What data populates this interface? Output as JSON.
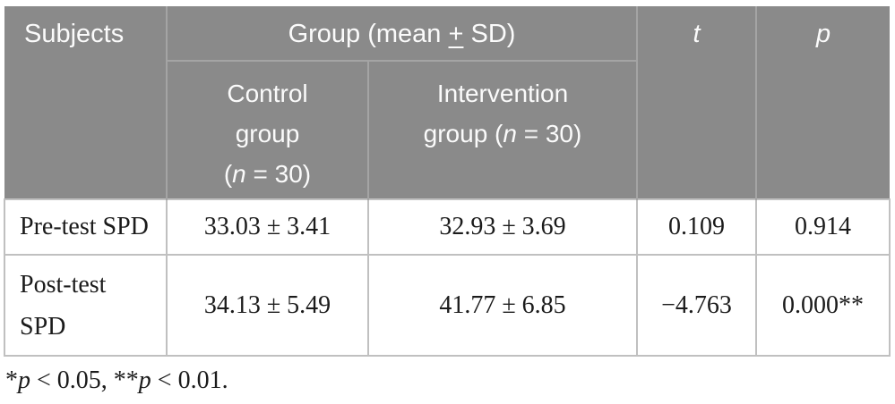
{
  "colors": {
    "header_bg": "#8a8a8a",
    "header_text": "#fbfbfb",
    "header_line": "#a4a4a4",
    "body_border": "#c0c0c0",
    "body_text": "#1b1b1b"
  },
  "table": {
    "header": {
      "subjects": "Subjects",
      "group": "Group (mean [u]+[/u] SD)",
      "t": "[i]t[/i]",
      "p": "[i]p[/i]",
      "control": "Control\ngroup\n([i]n[/i] = 30)",
      "intervention": "Intervention\ngroup ([i]n[/i] = 30)"
    },
    "rows": [
      {
        "label": "Pre-test SPD",
        "control": "33.03 ± 3.41",
        "intervention": "32.93 ± 3.69",
        "t": "0.109",
        "p": "0.914"
      },
      {
        "label": "Post-test\nSPD",
        "control": "34.13 ± 5.49",
        "intervention": "41.77 ± 6.85",
        "t": "−4.763",
        "p": "0.000**"
      }
    ],
    "footnote": "*[i]p[/i] < 0.05, **[i]p[/i] < 0.01."
  }
}
